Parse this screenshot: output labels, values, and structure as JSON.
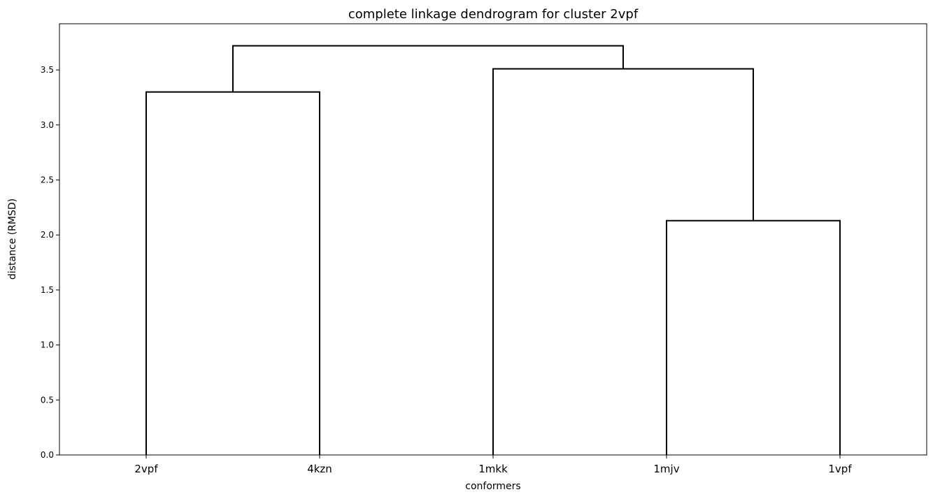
{
  "chart_data": {
    "type": "dendrogram",
    "title": "complete linkage dendrogram for cluster 2vpf",
    "xlabel": "conformers",
    "ylabel": "distance (RMSD)",
    "leaves": [
      "2vpf",
      "4kzn",
      "1mkk",
      "1mjv",
      "1vpf"
    ],
    "ylim": [
      0,
      3.92
    ],
    "yticks": [
      "0.0",
      "0.5",
      "1.0",
      "1.5",
      "2.0",
      "2.5",
      "3.0",
      "3.5"
    ],
    "ytick_values": [
      0,
      0.5,
      1.0,
      1.5,
      2.0,
      2.5,
      3.0,
      3.5
    ],
    "line_color": "#000000",
    "merges": [
      {
        "left": "1mjv",
        "right": "1vpf",
        "height": 2.13
      },
      {
        "left": "2vpf",
        "right": "4kzn",
        "height": 3.3
      },
      {
        "left": "1mkk",
        "right": "1mjv+1vpf",
        "height": 3.51
      },
      {
        "left": "2vpf+4kzn",
        "right": "1mkk+1mjv+1vpf",
        "height": 3.72
      }
    ]
  }
}
